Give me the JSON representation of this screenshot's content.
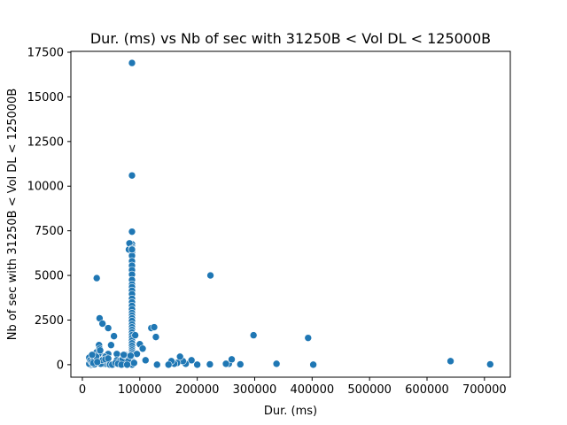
{
  "chart_data": {
    "type": "scatter",
    "title": "Dur. (ms) vs Nb of sec with 31250B < Vol DL < 125000B",
    "xlabel": "Dur. (ms)",
    "ylabel": "Nb of sec with 31250B < Vol DL < 125000B",
    "xlim": [
      -20000,
      745000
    ],
    "ylim": [
      -700,
      17550
    ],
    "xticks": [
      0,
      100000,
      200000,
      300000,
      400000,
      500000,
      600000,
      700000
    ],
    "yticks": [
      0,
      2500,
      5000,
      7500,
      10000,
      12500,
      15000,
      17500
    ],
    "grid": false,
    "marker_color": "#1f77b4",
    "x": [
      86400,
      86400,
      86400,
      86400,
      86400,
      86400,
      86400,
      86400,
      86400,
      86400,
      86400,
      86400,
      86400,
      86400,
      86400,
      86400,
      86400,
      86400,
      86400,
      86400,
      86400,
      86400,
      86400,
      86400,
      86400,
      86400,
      86400,
      86400,
      86400,
      86400,
      86400,
      86400,
      86400,
      86400,
      86400,
      86400,
      86400,
      86400,
      86400,
      86400,
      86400,
      86400,
      86400,
      86400,
      86400,
      86400,
      86400,
      86400,
      86400,
      86400,
      86400,
      86400,
      86400,
      86400,
      81000,
      82000,
      86400,
      86400,
      25000,
      30000,
      35000,
      45000,
      55000,
      50000,
      92000,
      100000,
      105000,
      120000,
      125000,
      128000,
      223000,
      298000,
      393000,
      641000,
      710000,
      402000,
      338000,
      275000,
      255000,
      250000,
      260000,
      222000,
      200000,
      190000,
      180000,
      175000,
      170000,
      165000,
      160000,
      155000,
      150000,
      130000,
      110000,
      95000,
      80000,
      75000,
      70000,
      65000,
      60000,
      55000,
      50000,
      45000,
      40000,
      38000,
      35000,
      32000,
      30000,
      28000,
      27000,
      25000,
      23000,
      22000,
      20000,
      18000,
      16000,
      15000,
      14000,
      13000,
      12000,
      12000,
      14000,
      16000,
      18000,
      20000,
      25000,
      30000,
      35000,
      40000,
      45000,
      60000,
      65000,
      70000,
      75000,
      80000,
      90000,
      28000,
      29000,
      30000,
      31000,
      21000,
      24000,
      17000,
      19000,
      26000,
      48000,
      52000,
      58000,
      62000,
      68000,
      72000,
      78000,
      84000
    ],
    "y": [
      16900,
      10600,
      7450,
      6750,
      6600,
      6400,
      6300,
      6100,
      5800,
      5550,
      5300,
      5050,
      4750,
      4500,
      4350,
      4150,
      3950,
      3700,
      3500,
      3300,
      3100,
      2900,
      2750,
      2600,
      2450,
      2250,
      2100,
      1950,
      1800,
      1650,
      1500,
      1350,
      1200,
      1050,
      900,
      800,
      700,
      600,
      500,
      400,
      350,
      300,
      250,
      200,
      150,
      100,
      50,
      20,
      0,
      0,
      0,
      0,
      0,
      0,
      6450,
      6800,
      6500,
      6450,
      4850,
      2600,
      2300,
      2050,
      1600,
      1100,
      1650,
      1150,
      900,
      2050,
      2100,
      1550,
      5000,
      1650,
      1500,
      200,
      20,
      0,
      50,
      20,
      50,
      50,
      300,
      20,
      0,
      250,
      50,
      200,
      450,
      100,
      50,
      200,
      0,
      0,
      250,
      600,
      250,
      550,
      300,
      50,
      600,
      50,
      0,
      600,
      50,
      450,
      50,
      50,
      650,
      500,
      450,
      300,
      300,
      200,
      100,
      0,
      0,
      0,
      200,
      100,
      50,
      400,
      250,
      150,
      50,
      400,
      700,
      300,
      250,
      300,
      350,
      250,
      200,
      300,
      500,
      200,
      100,
      600,
      1100,
      900,
      800,
      20,
      450,
      550,
      100,
      150,
      0,
      0,
      100,
      50,
      0,
      550,
      0,
      500
    ]
  }
}
